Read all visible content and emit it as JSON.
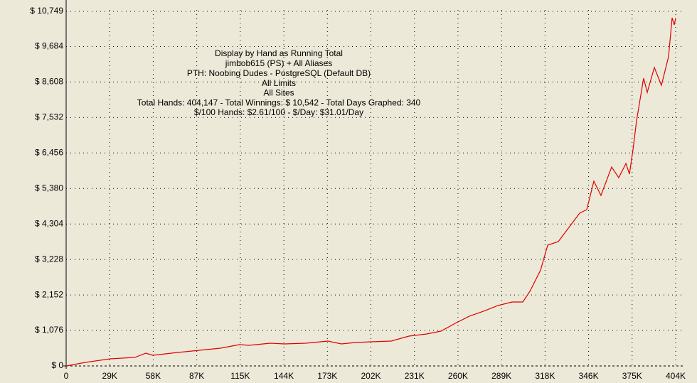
{
  "chart_data": {
    "type": "line",
    "title": "Display by Hand as Running Total",
    "subtitle": [
      "jimbob615 (PS) + All Aliases",
      "PTH: Noobing Dudes - PostgreSQL (Default DB)",
      "All Limits",
      "All Sites",
      "Total Hands: 404,147 - Total Winnings: $ 10,542 - Total Days Graphed: 340",
      "$/100 Hands: $2.61/100 - $/Day: $31.01/Day"
    ],
    "xlim": [
      0,
      404147
    ],
    "ylim": [
      0,
      10749
    ],
    "xticks": [
      {
        "value": 0,
        "label": "0"
      },
      {
        "value": 28868,
        "label": "29K"
      },
      {
        "value": 57735,
        "label": "58K"
      },
      {
        "value": 86603,
        "label": "87K"
      },
      {
        "value": 115471,
        "label": "115K"
      },
      {
        "value": 144338,
        "label": "144K"
      },
      {
        "value": 173206,
        "label": "173K"
      },
      {
        "value": 202074,
        "label": "202K"
      },
      {
        "value": 230941,
        "label": "231K"
      },
      {
        "value": 259809,
        "label": "260K"
      },
      {
        "value": 288676,
        "label": "289K"
      },
      {
        "value": 317544,
        "label": "318K"
      },
      {
        "value": 346412,
        "label": "346K"
      },
      {
        "value": 375279,
        "label": "375K"
      },
      {
        "value": 404147,
        "label": "404K"
      }
    ],
    "yticks": [
      {
        "value": 0,
        "label": "$ 0"
      },
      {
        "value": 1076,
        "label": "$ 1,076"
      },
      {
        "value": 2152,
        "label": "$ 2,152"
      },
      {
        "value": 3228,
        "label": "$ 3,228"
      },
      {
        "value": 4304,
        "label": "$ 4,304"
      },
      {
        "value": 5380,
        "label": "$ 5,380"
      },
      {
        "value": 6456,
        "label": "$ 6,456"
      },
      {
        "value": 7532,
        "label": "$ 7,532"
      },
      {
        "value": 8608,
        "label": "$ 8,608"
      },
      {
        "value": 9684,
        "label": "$ 9,684"
      },
      {
        "value": 10749,
        "label": "$ 10,749"
      }
    ],
    "grid": true,
    "x": [
      0,
      12700,
      29200,
      45700,
      52800,
      57500,
      74000,
      88200,
      102300,
      115000,
      121200,
      135300,
      144800,
      158900,
      173500,
      182500,
      191900,
      202300,
      215500,
      227300,
      239100,
      248500,
      258000,
      267400,
      276800,
      286300,
      295700,
      302800,
      307500,
      314600,
      319300,
      326300,
      333400,
      340500,
      345200,
      349900,
      354600,
      361700,
      366400,
      371200,
      373500,
      375900,
      378200,
      382900,
      385300,
      390000,
      394700,
      399400,
      401800,
      403200,
      404147
    ],
    "series": [
      {
        "color": "#e00000",
        "values": [
          0,
          108,
          215,
          260,
          388,
          323,
          409,
          474,
          539,
          646,
          625,
          689,
          668,
          689,
          754,
          668,
          711,
          732,
          754,
          905,
          969,
          1055,
          1292,
          1508,
          1659,
          1831,
          1939,
          1939,
          2262,
          2908,
          3662,
          3770,
          4200,
          4631,
          4739,
          5600,
          5170,
          6031,
          5708,
          6139,
          5816,
          6570,
          7431,
          8724,
          8293,
          9047,
          8508,
          9370,
          10555,
          10340,
          10542
        ]
      }
    ]
  }
}
